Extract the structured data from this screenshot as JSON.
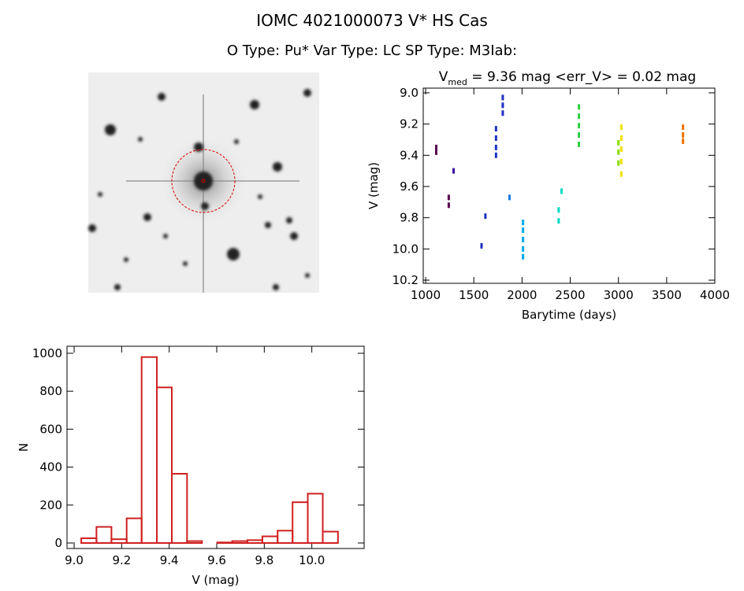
{
  "header": {
    "title": "IOMC 4021000073   V* HS Cas",
    "subtitle": "O Type: Pu*  Var Type: LC  SP Type: M3Iab:"
  },
  "chart_data": [
    {
      "type": "scatter",
      "title": [
        "V",
        "med",
        " = 9.36 mag <err_V> = 0.02 mag"
      ],
      "x_label": "Barytime (days)",
      "y_label": "V (mag)",
      "xlim": [
        975,
        4000
      ],
      "xticks": [
        1000,
        1500,
        2000,
        2500,
        3000,
        3500,
        4000
      ],
      "ylim": [
        10.22,
        8.97
      ],
      "yticks": [
        {
          "value": 9,
          "label": "9.0"
        },
        9.2,
        9.4,
        9.6,
        9.8,
        {
          "value": 10,
          "label": "10.0"
        },
        10.2
      ],
      "series": [
        {
          "color": "#5a0050",
          "x": [
            1110,
            1110,
            1240,
            1240
          ],
          "values": [
            9.35,
            9.38,
            9.67,
            9.72
          ]
        },
        {
          "color": "#3a10a0",
          "x": [
            1290
          ],
          "values": [
            9.5
          ]
        },
        {
          "color": "#2030c0",
          "x": [
            1580,
            1620,
            1730,
            1730,
            1730,
            1730,
            1800,
            1800,
            1800
          ],
          "values": [
            9.98,
            9.79,
            9.23,
            9.29,
            9.35,
            9.4,
            9.03,
            9.08,
            9.13
          ]
        },
        {
          "color": "#1878e0",
          "x": [
            1870
          ],
          "values": [
            9.67
          ]
        },
        {
          "color": "#00a8e8",
          "x": [
            2010,
            2010,
            2010,
            2010,
            2010
          ],
          "values": [
            9.83,
            9.88,
            9.94,
            10.0,
            10.05
          ]
        },
        {
          "color": "#00d8c8",
          "x": [
            2380,
            2380,
            2410
          ],
          "values": [
            9.75,
            9.82,
            9.63
          ]
        },
        {
          "color": "#30d040",
          "x": [
            2590,
            2590,
            2590,
            2590,
            2590
          ],
          "values": [
            9.09,
            9.15,
            9.21,
            9.27,
            9.33
          ]
        },
        {
          "color": "#88e000",
          "x": [
            3000,
            3000,
            3000
          ],
          "values": [
            9.32,
            9.38,
            9.45
          ]
        },
        {
          "color": "#f0e000",
          "x": [
            3030,
            3030,
            3030,
            3030,
            3030
          ],
          "values": [
            9.22,
            9.29,
            9.36,
            9.44,
            9.52
          ]
        },
        {
          "color": "#f07000",
          "x": [
            3670,
            3670,
            3670
          ],
          "values": [
            9.22,
            9.27,
            9.31
          ]
        }
      ]
    },
    {
      "type": "histogram",
      "x_label": "V (mag)",
      "y_label": "N",
      "color": "#d02020",
      "bins": [
        9.03,
        9.094,
        9.157,
        9.221,
        9.284,
        9.348,
        9.411,
        9.475,
        9.538,
        9.602,
        9.665,
        9.729,
        9.792,
        9.856,
        9.919,
        9.983,
        10.046,
        10.11
      ],
      "values": [
        25,
        85,
        20,
        130,
        980,
        820,
        365,
        10,
        0,
        3,
        10,
        15,
        35,
        65,
        215,
        260,
        60
      ],
      "xlim": [
        8.97,
        10.22
      ],
      "xticks": [
        {
          "value": 9,
          "label": "9.0"
        },
        9.2,
        9.4,
        9.6,
        9.8,
        {
          "value": 10,
          "label": "10.0"
        }
      ],
      "ylim": [
        -29,
        1037
      ],
      "yticks": [
        0,
        200,
        400,
        600,
        800,
        1000
      ]
    }
  ]
}
